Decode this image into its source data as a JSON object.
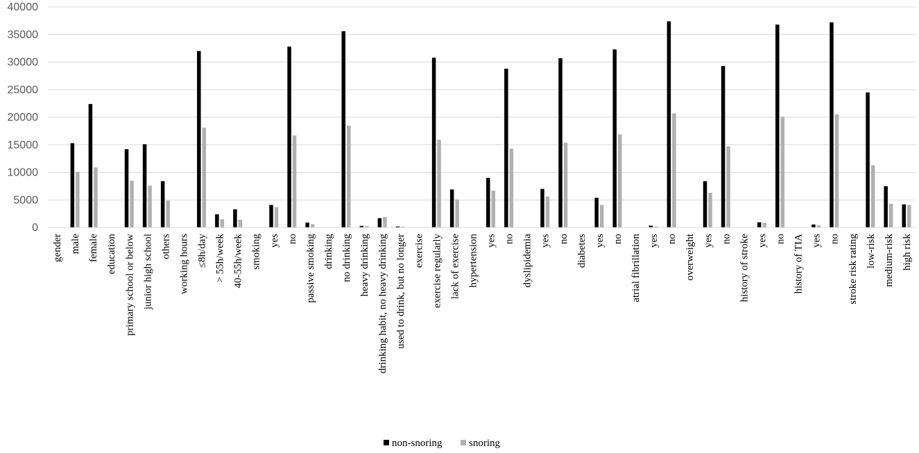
{
  "chart_data": {
    "type": "bar",
    "title": "",
    "xlabel": "",
    "ylabel": "",
    "ylim": [
      0,
      40000
    ],
    "yticks": [
      0,
      5000,
      10000,
      15000,
      20000,
      25000,
      30000,
      35000,
      40000
    ],
    "grid": true,
    "legend_position": "bottom-center",
    "categories": [
      "gender",
      "male",
      "female",
      "education",
      "primary school or below",
      "junior high school",
      "others",
      "working hours",
      "≤8h/day",
      "> 55h/week",
      "40-55h/week",
      "smoking",
      "yes",
      "no",
      "passive smoking",
      "drinking",
      "no drinking",
      "heavy drinking",
      "drinking habit, no heavy drinking",
      "used to drink, but no longer",
      "exercise",
      "exercise regularly",
      "lack of exercise",
      "hypertension",
      "yes",
      "no",
      "dyslipidemia",
      "yes",
      "no",
      "diabetes",
      "yes",
      "no",
      "atrial fibrillation",
      "yes",
      "no",
      "overweight",
      "yes",
      "no",
      "history of stroke",
      "yes",
      "no",
      "history of TIA",
      "yes",
      "no",
      "stroke risk rating",
      "low-risk",
      "medium-risk",
      "high risk"
    ],
    "series": [
      {
        "name": "non-snoring",
        "color": "#000000",
        "values": [
          0,
          15300,
          22400,
          0,
          14200,
          15100,
          8400,
          0,
          32000,
          2400,
          3300,
          0,
          4100,
          32800,
          900,
          0,
          35600,
          300,
          1700,
          200,
          0,
          30800,
          6900,
          0,
          9000,
          28800,
          0,
          7000,
          30700,
          0,
          5400,
          32300,
          0,
          350,
          37400,
          0,
          8400,
          29300,
          0,
          950,
          36800,
          0,
          550,
          37200,
          0,
          24500,
          7500,
          4200
        ]
      },
      {
        "name": "snoring",
        "color": "#b0b0b0",
        "values": [
          0,
          10100,
          10900,
          0,
          8500,
          7600,
          4900,
          0,
          18100,
          1500,
          1400,
          0,
          3700,
          16700,
          600,
          0,
          18500,
          250,
          1900,
          150,
          0,
          15900,
          5100,
          0,
          6700,
          14300,
          0,
          5600,
          15400,
          0,
          4100,
          16900,
          0,
          200,
          20700,
          0,
          6300,
          14700,
          0,
          850,
          20100,
          0,
          400,
          20500,
          0,
          11300,
          4300,
          4100
        ]
      }
    ]
  }
}
